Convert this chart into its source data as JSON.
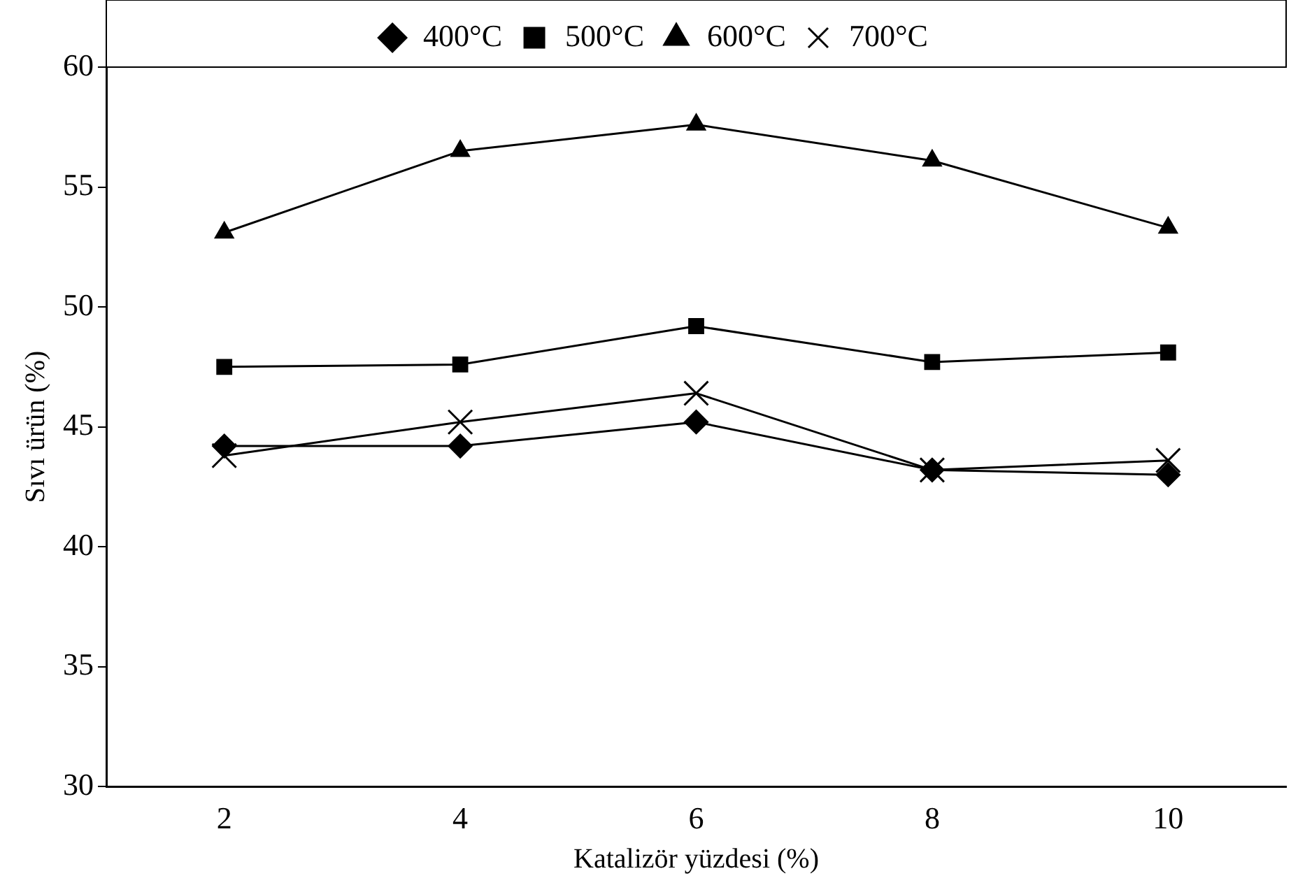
{
  "chart_data": {
    "type": "line",
    "xlabel": "Katalizör yüzdesi (%)",
    "ylabel": "Sıvı ürün (%)",
    "categories": [
      "2",
      "4",
      "6",
      "8",
      "10"
    ],
    "series": [
      {
        "name": "400°C",
        "color": "#000000",
        "marker": "diamond",
        "values": [
          44.2,
          44.2,
          45.2,
          43.2,
          43.0
        ]
      },
      {
        "name": "500°C",
        "color": "#000000",
        "marker": "square",
        "values": [
          47.5,
          47.6,
          49.2,
          47.7,
          48.1
        ]
      },
      {
        "name": "600°C",
        "color": "#000000",
        "marker": "triangle",
        "values": [
          53.1,
          56.5,
          57.6,
          56.1,
          53.3
        ]
      },
      {
        "name": "700°C",
        "color": "#000000",
        "marker": "cross",
        "values": [
          43.8,
          45.2,
          46.4,
          43.2,
          43.6
        ]
      }
    ],
    "ylim": [
      30,
      60
    ],
    "yticks": [
      30,
      35,
      40,
      45,
      50,
      55,
      60
    ],
    "grid": false,
    "legend": "top",
    "line_style": "solid"
  }
}
